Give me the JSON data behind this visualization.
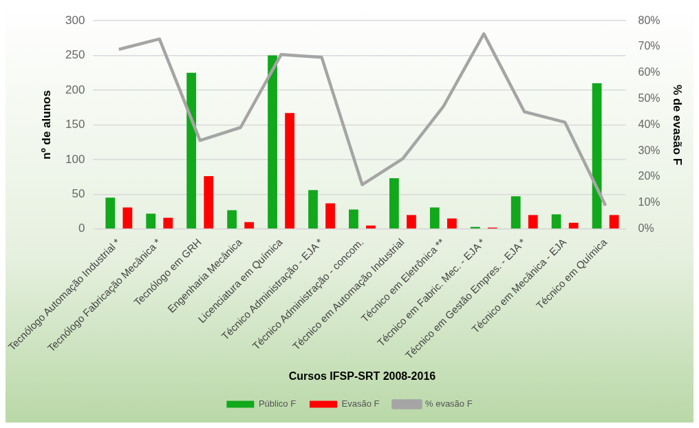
{
  "chart_data": {
    "type": "bar",
    "xlabel": "Cursos IFSP-SRT 2008-2016",
    "ylabel": "nº de alunos",
    "y2label": "% de evasão F",
    "categories": [
      "Tecnólogo Automação Industrial *",
      "Tecnólogo Fabricação Mecânica *",
      "Tecnólogo em GRH",
      "Engenharia Mecânica",
      "Licenciatura em Química",
      "Técnico Administração - EJA *",
      "Técnico Administração - concom.",
      "Técnico em Automação Industrial",
      "Técnico em Eletrônica **",
      "Técnico em Fabric. Mec. - EJA *",
      "Técnico em Gestão Empres. - EJA *",
      "Técnico em Mecânica - EJA",
      "Técnico em Química"
    ],
    "series": [
      {
        "name": "Público F",
        "color": "#11a81c",
        "values": [
          45,
          22,
          225,
          27,
          250,
          56,
          28,
          73,
          31,
          3,
          47,
          21,
          210
        ]
      },
      {
        "name": "Evasão F",
        "color": "#fe0000",
        "values": [
          31,
          16,
          76,
          10,
          167,
          37,
          5,
          20,
          15,
          2,
          20,
          9,
          20
        ]
      },
      {
        "name": "% evasão F",
        "type": "line",
        "axis": "y2",
        "color": "#a5a5a5",
        "values": [
          69,
          73,
          34,
          39,
          67,
          66,
          17,
          27,
          47,
          75,
          45,
          41,
          9
        ]
      }
    ],
    "ylim": [
      0,
      300
    ],
    "yticks": [
      0,
      50,
      100,
      150,
      200,
      250,
      300
    ],
    "y2lim": [
      0,
      80
    ],
    "y2ticks": [
      {
        "value": 0,
        "label": "0%"
      },
      {
        "value": 10,
        "label": "10%"
      },
      {
        "value": 20,
        "label": "20%"
      },
      {
        "value": 30,
        "label": "30%"
      },
      {
        "value": 40,
        "label": "40%"
      },
      {
        "value": 50,
        "label": "50%"
      },
      {
        "value": 60,
        "label": "60%"
      },
      {
        "value": 70,
        "label": "70%"
      },
      {
        "value": 80,
        "label": "80%"
      }
    ],
    "grid": "y",
    "legend": "bottom",
    "marker": "none",
    "line_style": "solid"
  }
}
